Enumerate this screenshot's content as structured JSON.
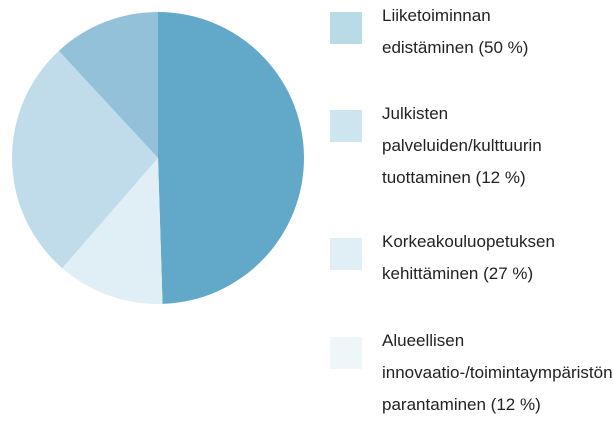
{
  "chart_data": {
    "type": "pie",
    "categories": [
      "Liiketoiminnan edistäminen (50 %)",
      "Julkisten palveluiden/kulttuurin tuottaminen (12 %)",
      "Korkeakouluopetuksen kehittäminen (27 %)",
      "Alueellisen innovaatio-/toimintaympäristön parantaminen (12 %)"
    ],
    "values": [
      50,
      12,
      27,
      12
    ],
    "colors": [
      "#62a9c9",
      "#e0eff5",
      "#c0dcea",
      "#93c1da"
    ],
    "legend_colors": [
      "#b9dbe8",
      "#cde5ee",
      "#e0eff5",
      "#eff6fa"
    ]
  }
}
